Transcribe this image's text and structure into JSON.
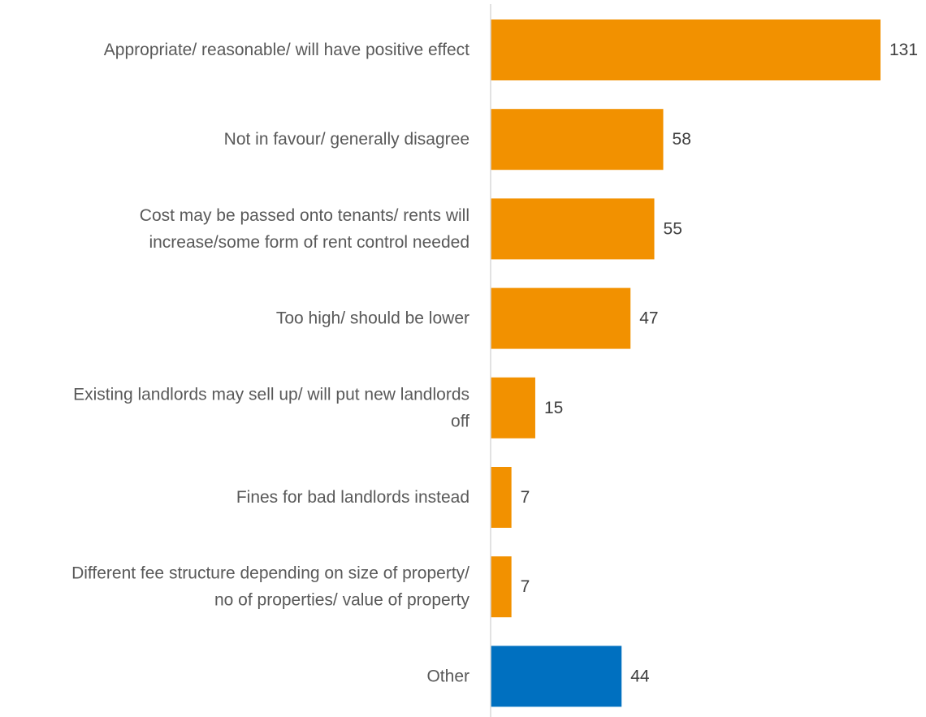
{
  "chart_data": {
    "type": "bar",
    "orientation": "horizontal",
    "title": "",
    "xlabel": "",
    "ylabel": "",
    "categories": [
      "Appropriate/ reasonable/ will have positive effect",
      "Not in favour/ generally disagree",
      "Cost may be passed onto tenants/ rents will increase/some form of rent control needed",
      "Too high/ should be lower",
      "Existing landlords may sell up/ will put new landlords off",
      "Fines for bad landlords instead",
      "Different fee structure depending on size of property/ no of properties/ value of property",
      "Other"
    ],
    "category_lines": [
      [
        "Appropriate/ reasonable/ will have positive effect"
      ],
      [
        "Not in favour/ generally disagree"
      ],
      [
        "Cost may be passed onto tenants/ rents will",
        "increase/some form of rent control needed"
      ],
      [
        "Too high/ should be lower"
      ],
      [
        "Existing landlords may sell up/ will put new landlords",
        "off"
      ],
      [
        "Fines for bad landlords instead"
      ],
      [
        "Different fee structure depending on size of property/",
        "no of properties/ value of property"
      ],
      [
        "Other"
      ]
    ],
    "values": [
      131,
      58,
      55,
      47,
      15,
      7,
      7,
      44
    ],
    "bar_colors": [
      "#F29100",
      "#F29100",
      "#F29100",
      "#F29100",
      "#F29100",
      "#F29100",
      "#F29100",
      "#0070C0"
    ],
    "xlim": [
      0,
      131
    ],
    "grid": false,
    "legend": "none",
    "data_labels": true,
    "colors": {
      "primary": "#F29100",
      "other": "#0070C0",
      "axis": "#D9D9D9",
      "label_text": "#595959",
      "value_text": "#404040"
    }
  }
}
